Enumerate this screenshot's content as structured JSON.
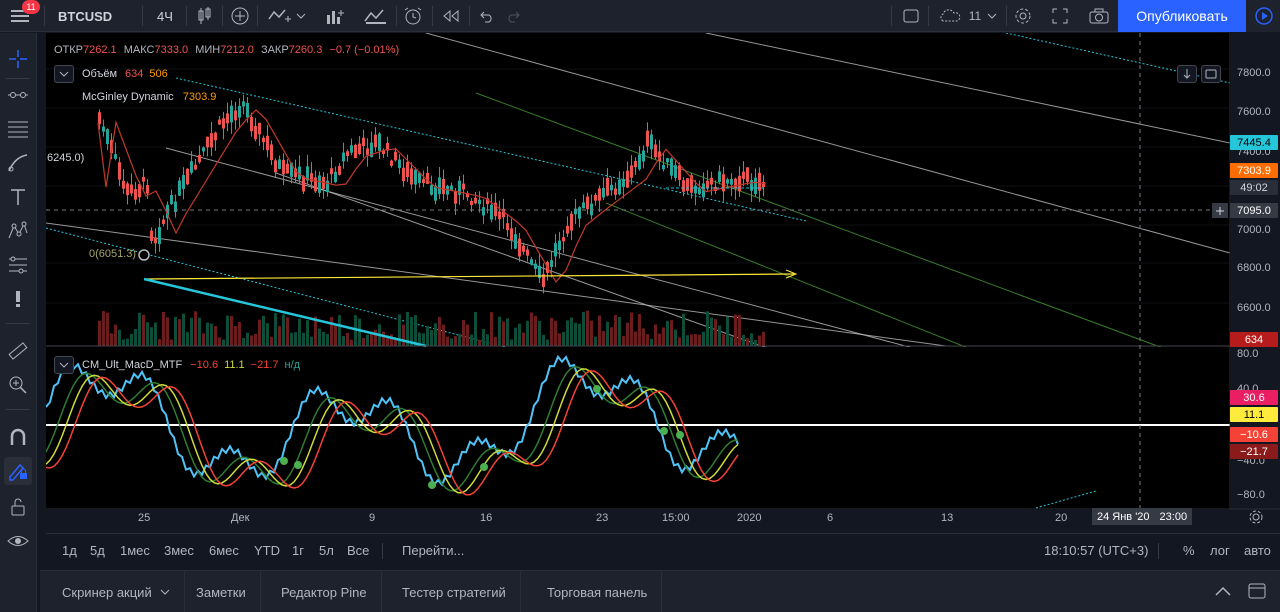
{
  "toolbar": {
    "menu_badge": "11",
    "symbol": "BTCUSD",
    "interval": "4Ч",
    "layout_count": "11",
    "publish_label": "Опубликовать"
  },
  "legend": {
    "open_label": "ОТКР",
    "open": "7262.1",
    "high_label": "МАКС",
    "high": "7333.0",
    "low_label": "МИН",
    "low": "7212.0",
    "close_label": "ЗАКР",
    "close": "7260.3",
    "change": "−0.7 (−0.01%)",
    "volume_label": "Объём",
    "volume_1": "634",
    "volume_2": "506",
    "mcginley_label": "McGinley Dynamic",
    "mcginley_value": "7303.9",
    "fib_label_1": "6245.0)",
    "fib_label_2": "0(6051.3)"
  },
  "macd_legend": {
    "name": "CM_Ult_MacD_MTF",
    "v1": "−10.6",
    "v2": "11.1",
    "v3": "−21.7",
    "v4": "н/д"
  },
  "price_scale": {
    "ticks": [
      "7800.0",
      "7600.0",
      "7400.0",
      "7000.0",
      "6800.0",
      "6600.0"
    ],
    "tag_cyan": "7445.4",
    "tag_orange": "7303.9",
    "tag_timer": "49:02",
    "tag_cursor": "7095.0",
    "tag_volume": "634"
  },
  "macd_scale": {
    "ticks": [
      "80.0",
      "40.0",
      "−40.0",
      "−80.0"
    ],
    "tag_pink": "30.6",
    "tag_yellow": "11.1",
    "tag_red": "−10.6",
    "tag_darkred": "−21.7"
  },
  "time_axis": {
    "ticks": [
      "25",
      "Дек",
      "9",
      "16",
      "23",
      "15:00",
      "2020",
      "6",
      "13",
      "20"
    ],
    "cursor_date": "24 Янв '20",
    "cursor_time": "23:00"
  },
  "range_bar": {
    "ranges": [
      "1д",
      "5д",
      "1мес",
      "3мес",
      "6мес",
      "YTD",
      "1г",
      "5л",
      "Все"
    ],
    "goto_label": "Перейти...",
    "clock": "18:10:57 (UTC+3)",
    "percent_label": "%",
    "log_label": "лог",
    "auto_label": "авто"
  },
  "bottom_tabs": [
    "Скринер акций",
    "Заметки",
    "Редактор Pine",
    "Тестер стратегий",
    "Торговая панель"
  ],
  "colors": {
    "accent": "#2962ff",
    "bull": "#26a69a",
    "bear": "#ef5350",
    "macd_cyan": "#4fc3f7",
    "signal_yellow": "#cddc39",
    "signal_red": "#f44336",
    "tag_pink": "#e91e63",
    "tag_orange": "#ff6d00"
  }
}
